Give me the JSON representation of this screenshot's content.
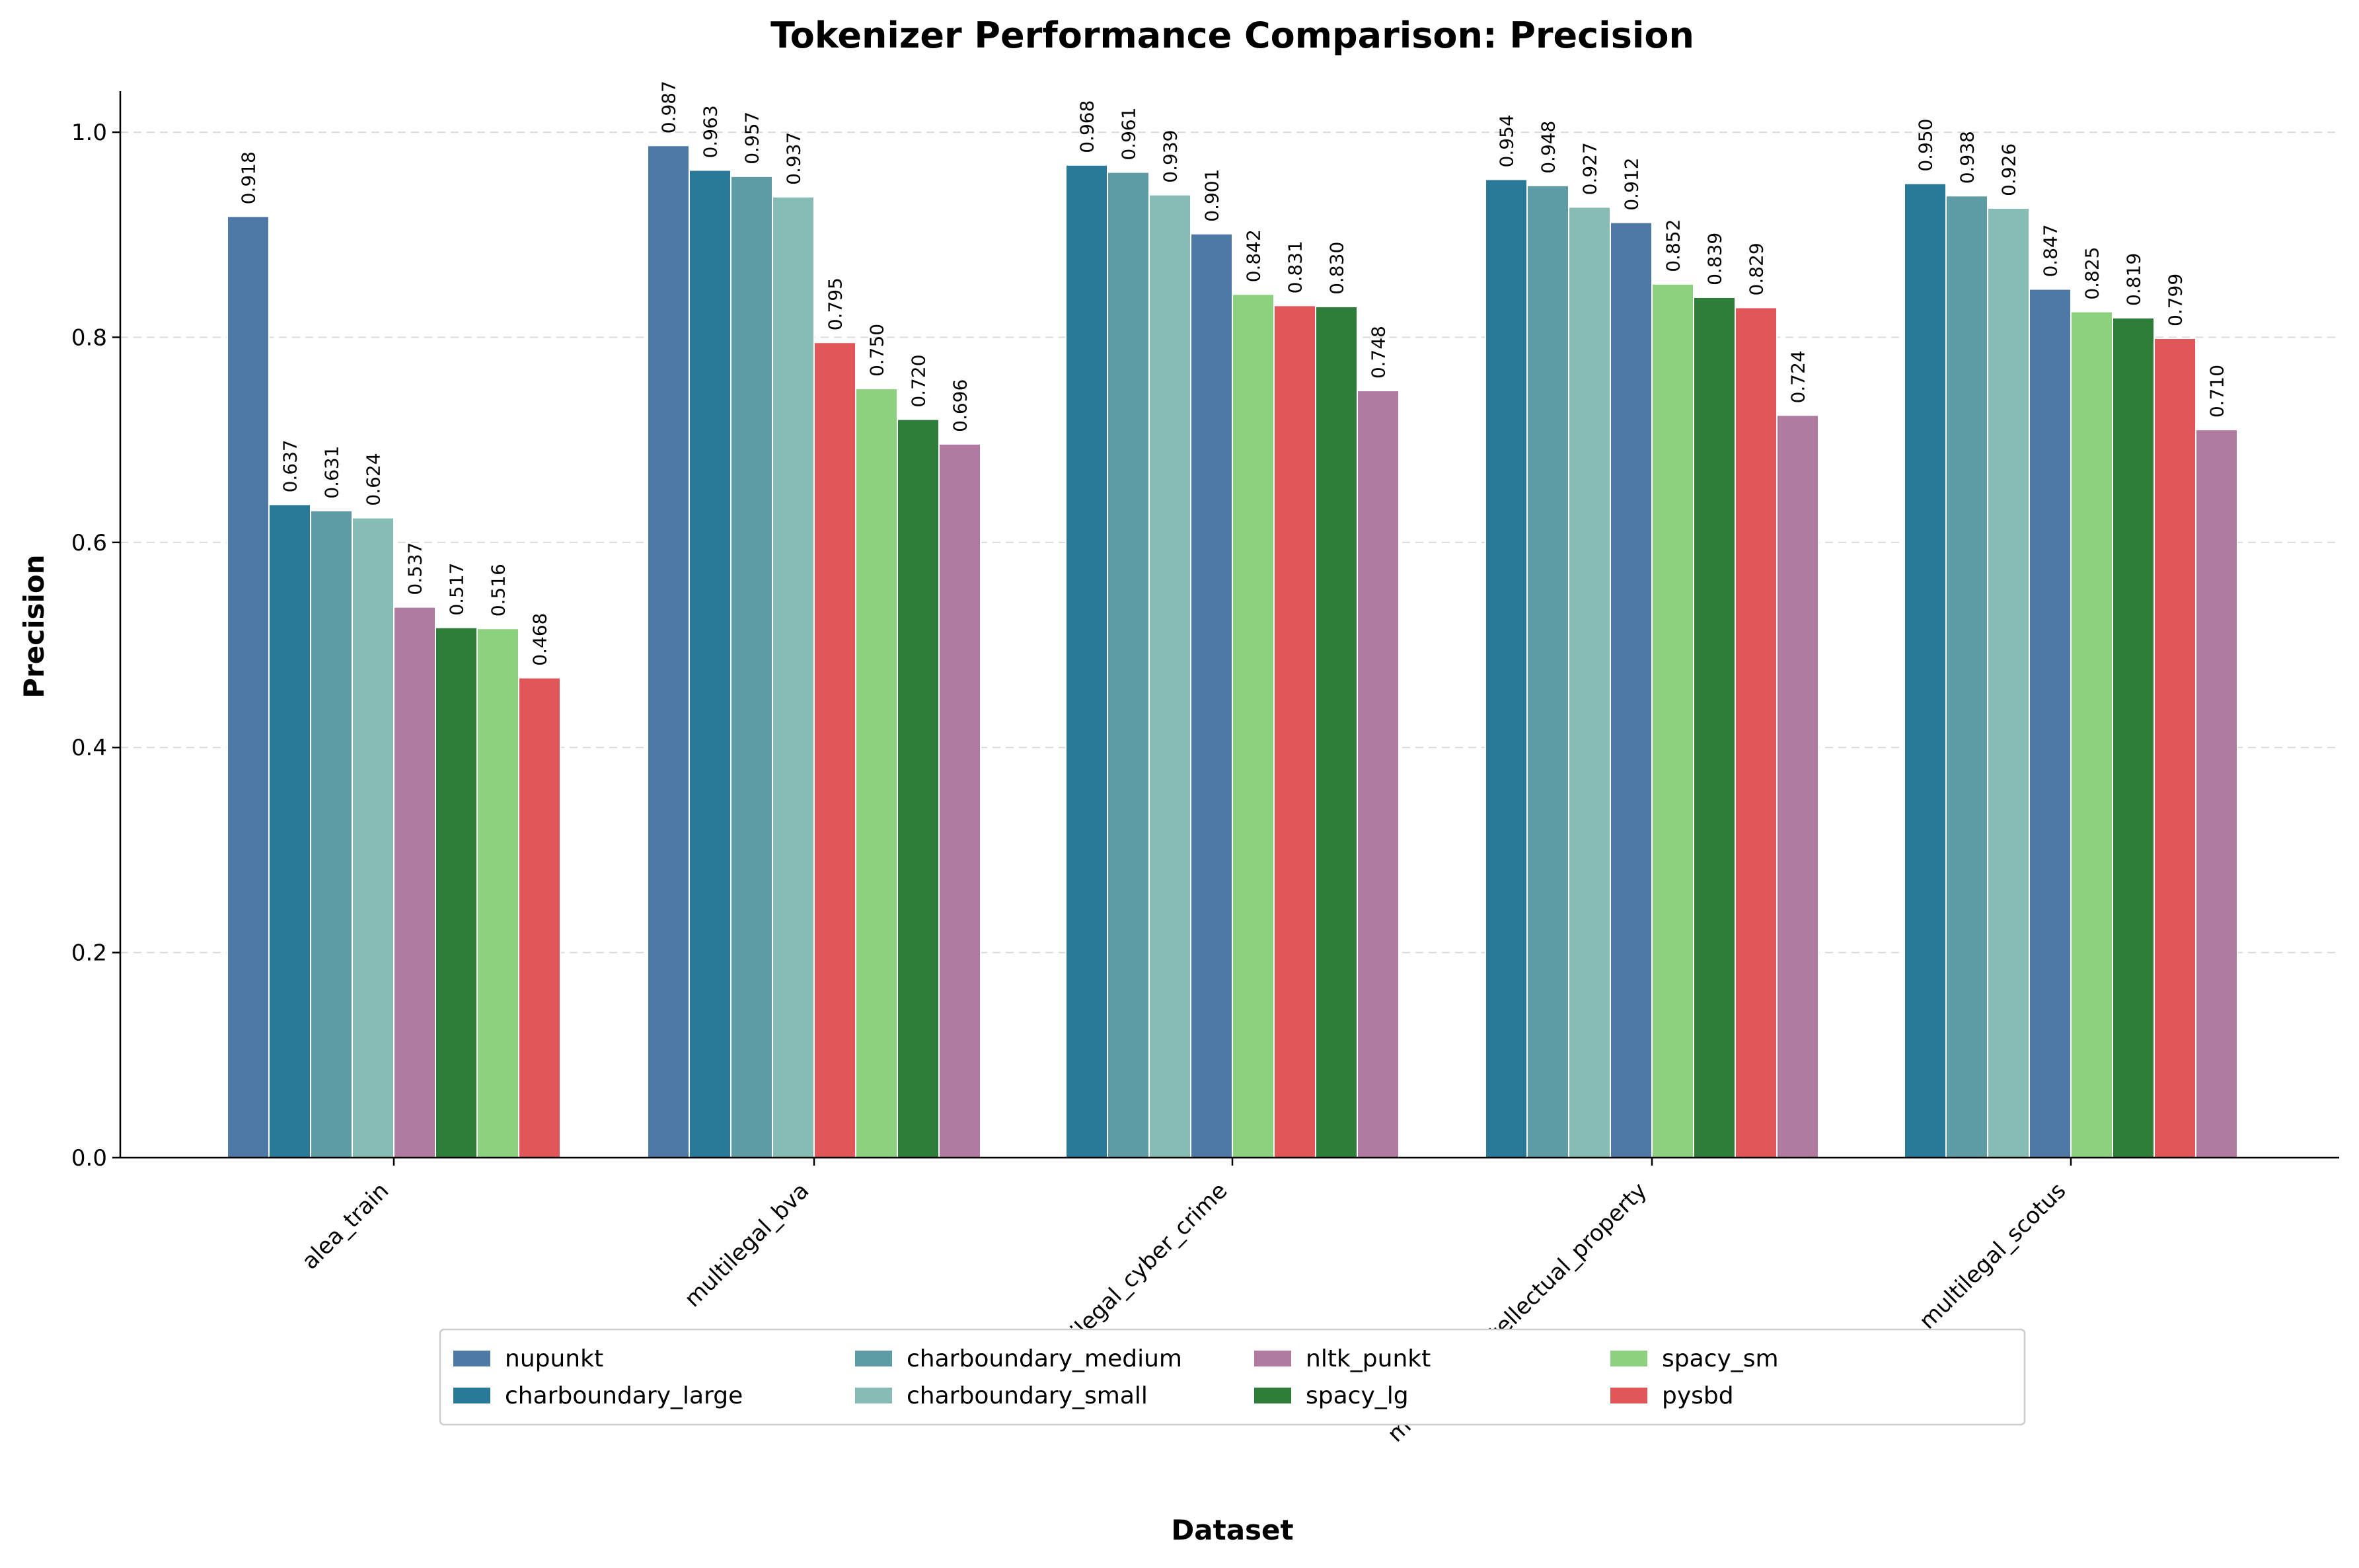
{
  "chart_data": {
    "type": "bar",
    "title": "Tokenizer Performance Comparison: Precision",
    "xlabel": "Dataset",
    "ylabel": "Precision",
    "ylim": [
      0,
      1.04
    ],
    "yticks": [
      "0.0",
      "0.2",
      "0.4",
      "0.6",
      "0.8",
      "1.0"
    ],
    "grid": "horizontal dashed",
    "legend_position": "bottom-center",
    "legend_columns": 5,
    "series_order": [
      "nupunkt",
      "charboundary_large",
      "charboundary_medium",
      "charboundary_small",
      "nltk_punkt",
      "spacy_lg",
      "spacy_sm",
      "pysbd"
    ],
    "series_colors": {
      "nupunkt": "#4e79a7",
      "charboundary_large": "#2b7999",
      "charboundary_medium": "#5e9ba5",
      "charboundary_small": "#86bcb4",
      "nltk_punkt": "#b07aa1",
      "spacy_lg": "#2e7d3a",
      "spacy_sm": "#8cd17d",
      "pysbd": "#e15759"
    },
    "groups": [
      {
        "category": "alea_train",
        "bars": [
          {
            "series": "nupunkt",
            "value": 0.918,
            "label": "0.918"
          },
          {
            "series": "charboundary_large",
            "value": 0.637,
            "label": "0.637"
          },
          {
            "series": "charboundary_medium",
            "value": 0.631,
            "label": "0.631"
          },
          {
            "series": "charboundary_small",
            "value": 0.624,
            "label": "0.624"
          },
          {
            "series": "nltk_punkt",
            "value": 0.537,
            "label": "0.537"
          },
          {
            "series": "spacy_lg",
            "value": 0.517,
            "label": "0.517"
          },
          {
            "series": "spacy_sm",
            "value": 0.516,
            "label": "0.516"
          },
          {
            "series": "pysbd",
            "value": 0.468,
            "label": "0.468"
          }
        ]
      },
      {
        "category": "multilegal_bva",
        "bars": [
          {
            "series": "nupunkt",
            "value": 0.987,
            "label": "0.987"
          },
          {
            "series": "charboundary_large",
            "value": 0.963,
            "label": "0.963"
          },
          {
            "series": "charboundary_medium",
            "value": 0.957,
            "label": "0.957"
          },
          {
            "series": "charboundary_small",
            "value": 0.937,
            "label": "0.937"
          },
          {
            "series": "pysbd",
            "value": 0.795,
            "label": "0.795"
          },
          {
            "series": "spacy_sm",
            "value": 0.75,
            "label": "0.750"
          },
          {
            "series": "spacy_lg",
            "value": 0.72,
            "label": "0.720"
          },
          {
            "series": "nltk_punkt",
            "value": 0.696,
            "label": "0.696"
          }
        ]
      },
      {
        "category": "multilegal_cyber_crime",
        "bars": [
          {
            "series": "charboundary_large",
            "value": 0.968,
            "label": "0.968"
          },
          {
            "series": "charboundary_medium",
            "value": 0.961,
            "label": "0.961"
          },
          {
            "series": "charboundary_small",
            "value": 0.939,
            "label": "0.939"
          },
          {
            "series": "nupunkt",
            "value": 0.901,
            "label": "0.901"
          },
          {
            "series": "spacy_sm",
            "value": 0.842,
            "label": "0.842"
          },
          {
            "series": "pysbd",
            "value": 0.831,
            "label": "0.831"
          },
          {
            "series": "spacy_lg",
            "value": 0.83,
            "label": "0.830"
          },
          {
            "series": "nltk_punkt",
            "value": 0.748,
            "label": "0.748"
          }
        ]
      },
      {
        "category": "multilegal_intellectual_property",
        "bars": [
          {
            "series": "charboundary_large",
            "value": 0.954,
            "label": "0.954"
          },
          {
            "series": "charboundary_medium",
            "value": 0.948,
            "label": "0.948"
          },
          {
            "series": "charboundary_small",
            "value": 0.927,
            "label": "0.927"
          },
          {
            "series": "nupunkt",
            "value": 0.912,
            "label": "0.912"
          },
          {
            "series": "spacy_sm",
            "value": 0.852,
            "label": "0.852"
          },
          {
            "series": "spacy_lg",
            "value": 0.839,
            "label": "0.839"
          },
          {
            "series": "pysbd",
            "value": 0.829,
            "label": "0.829"
          },
          {
            "series": "nltk_punkt",
            "value": 0.724,
            "label": "0.724"
          }
        ]
      },
      {
        "category": "multilegal_scotus",
        "bars": [
          {
            "series": "charboundary_large",
            "value": 0.95,
            "label": "0.950"
          },
          {
            "series": "charboundary_medium",
            "value": 0.938,
            "label": "0.938"
          },
          {
            "series": "charboundary_small",
            "value": 0.926,
            "label": "0.926"
          },
          {
            "series": "nupunkt",
            "value": 0.847,
            "label": "0.847"
          },
          {
            "series": "spacy_sm",
            "value": 0.825,
            "label": "0.825"
          },
          {
            "series": "spacy_lg",
            "value": 0.819,
            "label": "0.819"
          },
          {
            "series": "pysbd",
            "value": 0.799,
            "label": "0.799"
          },
          {
            "series": "nltk_punkt",
            "value": 0.71,
            "label": "0.710"
          }
        ]
      }
    ],
    "legend": [
      "nupunkt",
      "charboundary_large",
      "charboundary_medium",
      "charboundary_small",
      "nltk_punkt",
      "spacy_lg",
      "spacy_sm",
      "pysbd"
    ]
  }
}
